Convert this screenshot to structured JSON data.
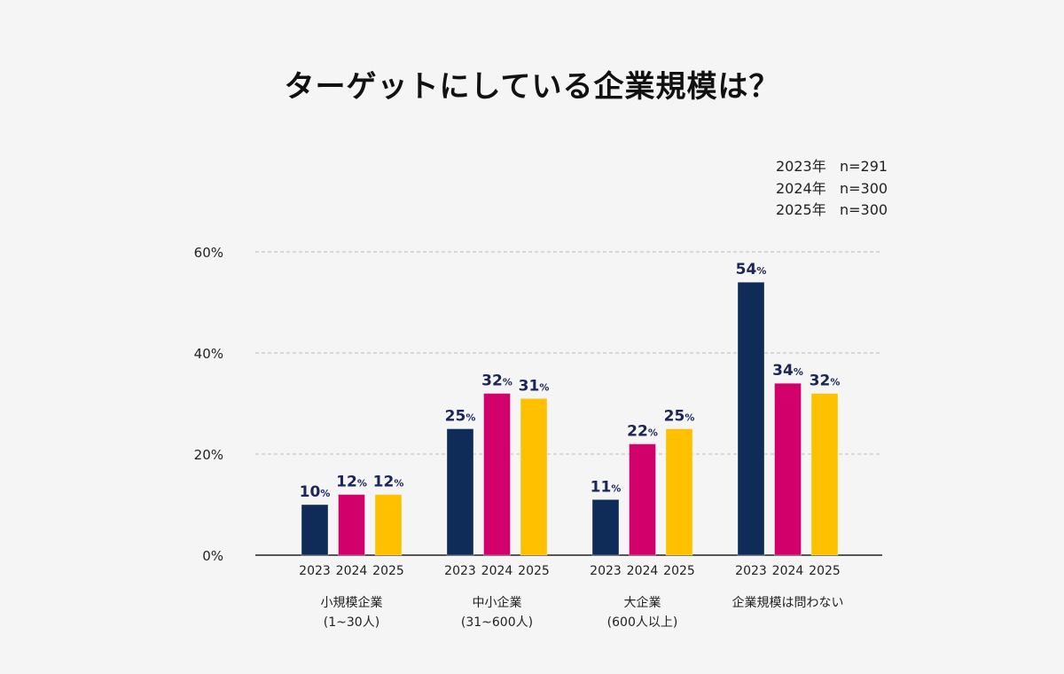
{
  "chart_data": {
    "type": "bar",
    "title": "ターゲットにしている企業規模は？",
    "categories": [
      "小規模企業\n(1~30人)",
      "中小企業\n(31~600人)",
      "大企業\n(600人以上)",
      "企業規模は問わない"
    ],
    "series": [
      {
        "name": "2023",
        "color": "#0e2c57",
        "values": [
          10,
          25,
          11,
          54
        ]
      },
      {
        "name": "2024",
        "color": "#d2006b",
        "values": [
          12,
          32,
          22,
          34
        ]
      },
      {
        "name": "2025",
        "color": "#ffc000",
        "values": [
          12,
          31,
          25,
          32
        ]
      }
    ],
    "value_suffix": "%",
    "value_label_color": "#1b2558",
    "ylim": [
      0,
      60
    ],
    "yticks": [
      0,
      20,
      40,
      60
    ],
    "ytick_labels": [
      "0%",
      "20%",
      "40%",
      "60%"
    ],
    "grid": "dashed horizontal",
    "legend_notes": [
      {
        "year": "2023年",
        "n": "n=291"
      },
      {
        "year": "2024年",
        "n": "n=300"
      },
      {
        "year": "2025年",
        "n": "n=300"
      }
    ]
  }
}
